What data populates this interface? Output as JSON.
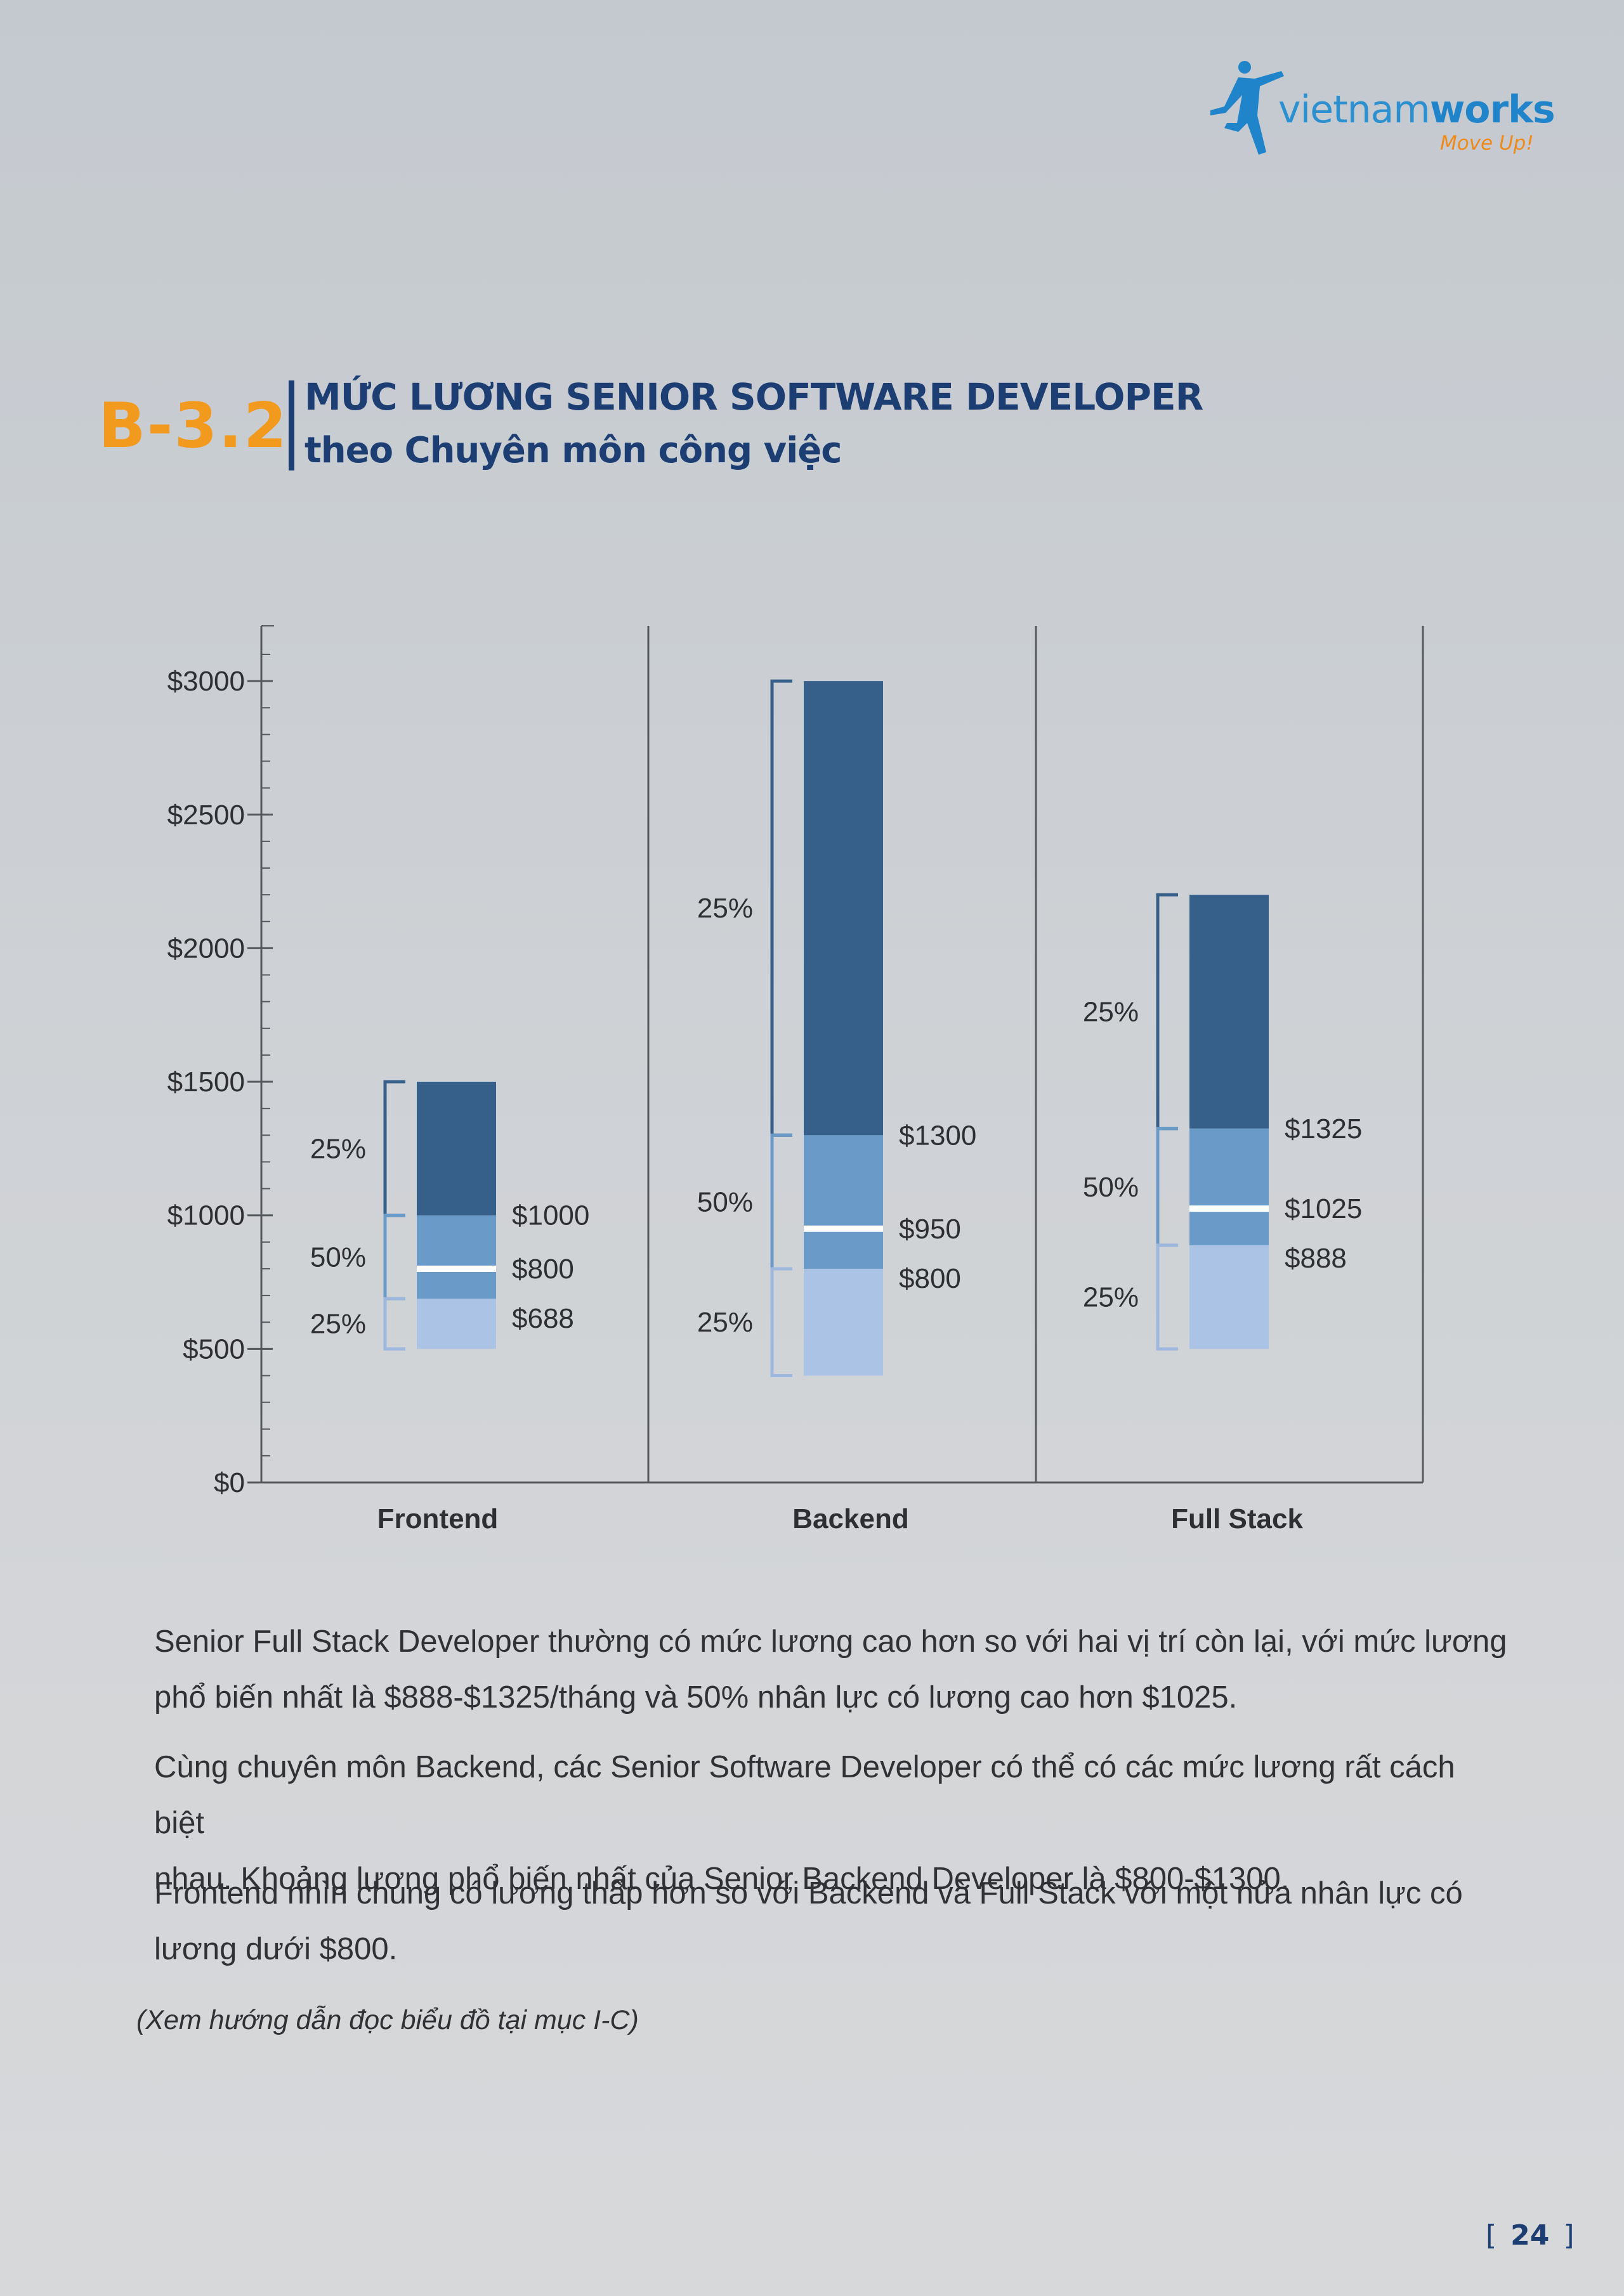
{
  "brand": {
    "name_part1": "vietnam",
    "name_part2": "works",
    "tagline": "Move Up!",
    "colors": {
      "blue": "#1f84c9",
      "orange": "#ee8a1a"
    }
  },
  "section": {
    "code": "B-3.2",
    "title_line1": "MỨC LƯƠNG SENIOR SOFTWARE DEVELOPER",
    "title_line2": "theo Chuyên môn công việc"
  },
  "chart_data": {
    "type": "bar",
    "subtype": "salary percentile range (25% / 50% / 25%)",
    "y_ticks": [
      {
        "value": 0,
        "label": "$0"
      },
      {
        "value": 500,
        "label": "$500"
      },
      {
        "value": 1000,
        "label": "$1000"
      },
      {
        "value": 1500,
        "label": "$1500"
      },
      {
        "value": 2000,
        "label": "$2000"
      },
      {
        "value": 2500,
        "label": "$2500"
      },
      {
        "value": 3000,
        "label": "$3000"
      }
    ],
    "ylim": [
      0,
      3200
    ],
    "grid": false,
    "colors": {
      "low": "#abc4e6",
      "mid": "#6a9ac8",
      "high": "#36608a",
      "median_line": "#ffffff"
    },
    "groups": [
      {
        "category": "Frontend",
        "min": 500,
        "p25": 688,
        "median": 800,
        "p75": 1000,
        "max": 1500,
        "value_labels": {
          "p25": "$688",
          "median": "$800",
          "p75": "$1000"
        },
        "bracket_labels": {
          "low": "25%",
          "mid": "50%",
          "high": "25%"
        }
      },
      {
        "category": "Backend",
        "min": 400,
        "p25": 800,
        "median": 950,
        "p75": 1300,
        "max": 3000,
        "value_labels": {
          "p25": "$800",
          "median": "$950",
          "p75": "$1300"
        },
        "bracket_labels": {
          "low": "25%",
          "mid": "50%",
          "high": "25%"
        }
      },
      {
        "category": "Full Stack",
        "min": 500,
        "p25": 888,
        "median": 1025,
        "p75": 1325,
        "max": 2200,
        "value_labels": {
          "p25": "$888",
          "median": "$1025",
          "p75": "$1325"
        },
        "bracket_labels": {
          "low": "25%",
          "mid": "50%",
          "high": "25%"
        }
      }
    ]
  },
  "paragraphs": [
    {
      "line1": "Senior Full Stack Developer thường có mức lương cao hơn so với hai vị trí còn lại, với mức lương",
      "line2": "phổ biến nhất là $888-$1325/tháng và 50% nhân lực có lương cao hơn $1025."
    },
    {
      "line1": "Cùng chuyên môn Backend, các Senior Software Developer có thể có các mức lương rất cách biệt",
      "line2": "nhau. Khoảng lương phổ biến nhất của Senior Backend Developer là $800-$1300."
    },
    {
      "line1": "Frontend nhìn chung có lương thấp hơn so với Backend và Full Stack với một nửa nhân lực có",
      "line2": "lương dưới $800."
    }
  ],
  "note": "(Xem hướng dẫn đọc biểu đồ tại mục I-C)",
  "page": {
    "open": "[",
    "number": "24",
    "close": "]"
  }
}
